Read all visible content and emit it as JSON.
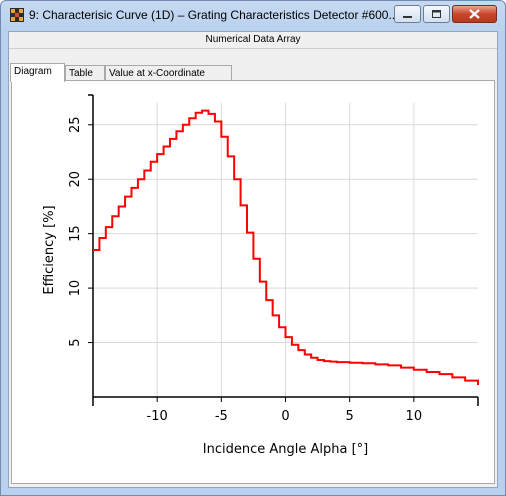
{
  "window": {
    "title": "9: Characterisic Curve (1D) – Grating Characteristics Detector #600...",
    "header_label": "Numerical Data Array",
    "tabs": [
      {
        "label": "Diagram",
        "active": true
      },
      {
        "label": "Table",
        "active": false
      },
      {
        "label": "Value at x-Coordinate",
        "active": false
      }
    ]
  },
  "chart_data": {
    "type": "line",
    "xlabel": "Incidence Angle Alpha [°]",
    "ylabel": "Efficiency [%]",
    "xlim": [
      -15,
      15
    ],
    "ylim": [
      0,
      27
    ],
    "xticks": [
      -10,
      -5,
      0,
      5,
      10
    ],
    "yticks": [
      5,
      10,
      15,
      20,
      25
    ],
    "grid": true,
    "line_color": "#ff0000",
    "series": [
      {
        "x": [
          -15,
          -14.5,
          -14,
          -13.5,
          -13,
          -12.5,
          -12,
          -11.5,
          -11,
          -10.5,
          -10,
          -9.5,
          -9,
          -8.5,
          -8,
          -7.5,
          -7,
          -6.5,
          -6,
          -5.5,
          -5,
          -4.5,
          -4,
          -3.5,
          -3,
          -2.5,
          -2,
          -1.5,
          -1,
          -0.5,
          0,
          0.5,
          1,
          1.5,
          2,
          2.5,
          3,
          3.5,
          4,
          5,
          6,
          7,
          8,
          9,
          10,
          11,
          12,
          13,
          14,
          15
        ],
        "y": [
          13.5,
          14.6,
          15.6,
          16.6,
          17.5,
          18.4,
          19.2,
          20.0,
          20.8,
          21.6,
          22.3,
          23.0,
          23.7,
          24.4,
          25.0,
          25.6,
          26.1,
          26.3,
          26.0,
          25.3,
          23.9,
          22.1,
          20.0,
          17.6,
          15.1,
          12.7,
          10.6,
          8.9,
          7.5,
          6.4,
          5.5,
          4.8,
          4.3,
          3.9,
          3.6,
          3.4,
          3.3,
          3.25,
          3.2,
          3.15,
          3.1,
          3.0,
          2.9,
          2.7,
          2.5,
          2.3,
          2.1,
          1.8,
          1.5,
          1.1
        ]
      }
    ]
  }
}
